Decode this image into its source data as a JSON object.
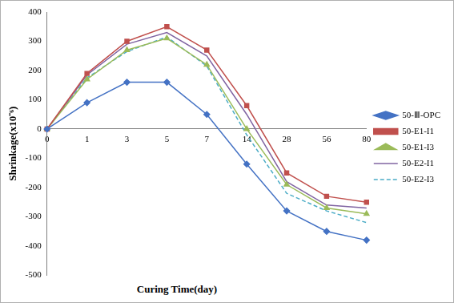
{
  "chart_data": {
    "type": "line",
    "x_label": "Curing Time(day)",
    "y_label": "Shrinkage(x10⁻⁶)",
    "categories": [
      "0",
      "1",
      "3",
      "5",
      "7",
      "14",
      "28",
      "56",
      "80"
    ],
    "series": [
      {
        "name": "50-Ⅲ-OPC",
        "color": "#4472c4",
        "marker": "diamond",
        "line_style": "solid",
        "values": [
          0,
          90,
          160,
          160,
          50,
          -120,
          -280,
          -350,
          -380
        ]
      },
      {
        "name": "50-E1-I1",
        "color": "#c0504d",
        "marker": "square",
        "line_style": "solid",
        "values": [
          0,
          190,
          300,
          350,
          270,
          80,
          -150,
          -230,
          -250
        ]
      },
      {
        "name": "50-E1-I3",
        "color": "#9bbb59",
        "marker": "triangle",
        "line_style": "solid",
        "values": [
          0,
          170,
          270,
          310,
          220,
          0,
          -190,
          -270,
          -290
        ]
      },
      {
        "name": "50-E2-I1",
        "color": "#8064a2",
        "marker": "none",
        "line_style": "solid",
        "values": [
          0,
          185,
          290,
          330,
          250,
          50,
          -180,
          -260,
          -270
        ]
      },
      {
        "name": "50-E2-I3",
        "color": "#4bacc6",
        "marker": "none",
        "line_style": "dashed",
        "values": [
          0,
          175,
          265,
          315,
          215,
          -20,
          -220,
          -280,
          -320
        ]
      }
    ],
    "ylim": [
      -500,
      400
    ],
    "yticks": [
      -500,
      -400,
      -300,
      -200,
      -100,
      0,
      100,
      200,
      300,
      400
    ],
    "grid": false,
    "legend": "right"
  }
}
